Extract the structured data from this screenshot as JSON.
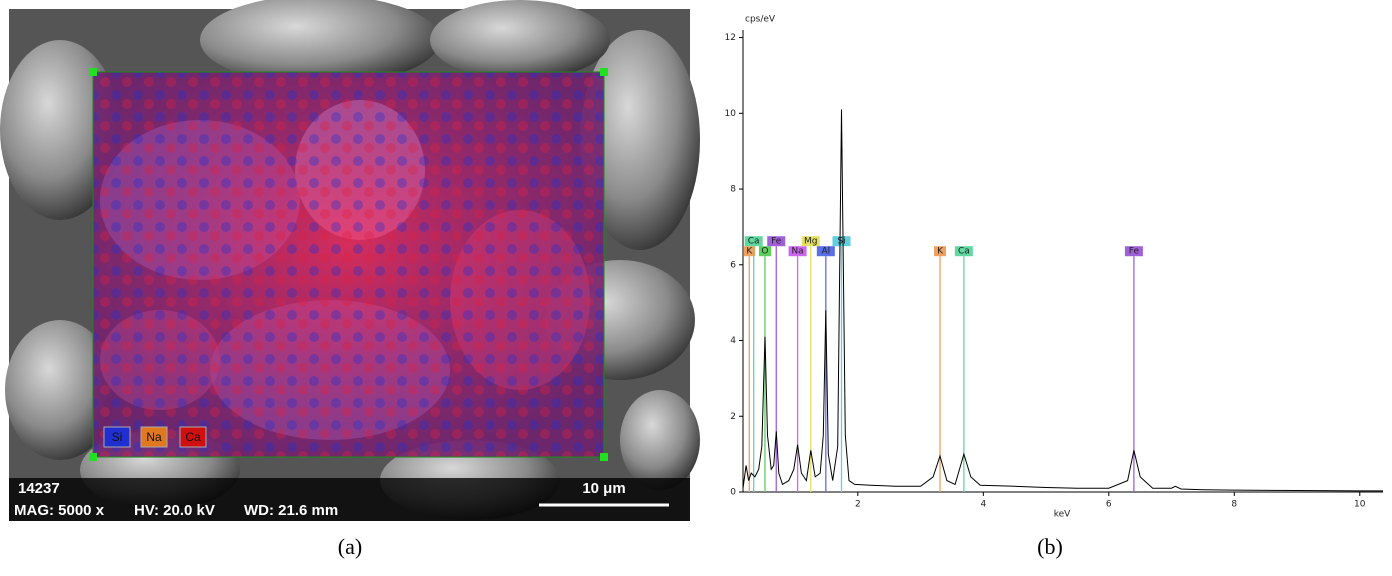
{
  "panel_a": {
    "scale_number": "14237",
    "magnification": "MAG: 5000 x",
    "voltage": "HV: 20.0 kV",
    "working_distance": "WD: 21.6 mm",
    "scale_bar": "10 μm",
    "map_legend": [
      "Si",
      "Na",
      "Ca"
    ],
    "caption": "(a)"
  },
  "panel_b_caption": "(b)",
  "chart_data": {
    "type": "line",
    "y_label": "cps/eV",
    "x_label": "keV",
    "x": [
      0.17,
      0.22,
      0.26,
      0.3,
      0.36,
      0.42,
      0.47,
      0.52,
      0.56,
      0.62,
      0.66,
      0.7,
      0.74,
      0.8,
      0.9,
      0.98,
      1.04,
      1.1,
      1.18,
      1.25,
      1.32,
      1.4,
      1.45,
      1.49,
      1.53,
      1.6,
      1.68,
      1.74,
      1.8,
      1.86,
      1.95,
      2.2,
      2.6,
      3.0,
      3.2,
      3.31,
      3.42,
      3.55,
      3.69,
      3.8,
      3.95,
      4.5,
      5.0,
      5.5,
      6.0,
      6.3,
      6.4,
      6.5,
      6.7,
      7.0,
      7.06,
      7.15,
      7.5,
      8.0,
      9.0,
      10.0,
      10.37
    ],
    "values": [
      0.1,
      0.7,
      0.3,
      0.5,
      0.4,
      0.6,
      1.2,
      4.1,
      1.5,
      0.6,
      0.7,
      1.6,
      0.5,
      0.2,
      0.3,
      0.6,
      1.25,
      0.5,
      0.3,
      1.1,
      0.4,
      0.5,
      1.5,
      4.8,
      1.0,
      0.3,
      1.2,
      10.1,
      1.5,
      0.3,
      0.2,
      0.18,
      0.15,
      0.15,
      0.4,
      0.95,
      0.3,
      0.2,
      1.0,
      0.4,
      0.18,
      0.15,
      0.12,
      0.1,
      0.1,
      0.3,
      1.1,
      0.4,
      0.1,
      0.1,
      0.15,
      0.08,
      0.06,
      0.05,
      0.04,
      0.03,
      0.03
    ],
    "color": "#000000",
    "xlim": [
      0.17,
      10.37
    ],
    "ylim": [
      0,
      12.2
    ],
    "xticks": [
      2,
      4,
      6,
      8,
      10
    ],
    "yticks": [
      0,
      2,
      4,
      6,
      8,
      10,
      12
    ],
    "markers": [
      {
        "label": "K",
        "x": 0.27,
        "color": "#f0a060"
      },
      {
        "label": "Ca",
        "x": 0.34,
        "color": "#60d8a0"
      },
      {
        "label": "O",
        "x": 0.52,
        "color": "#5cd05c"
      },
      {
        "label": "Fe",
        "x": 0.7,
        "color": "#a060d8"
      },
      {
        "label": "Na",
        "x": 1.04,
        "color": "#cc66ee"
      },
      {
        "label": "Mg",
        "x": 1.25,
        "color": "#e6e060"
      },
      {
        "label": "Al",
        "x": 1.49,
        "color": "#5a6ee8"
      },
      {
        "label": "Si",
        "x": 1.74,
        "color": "#60d0e0"
      },
      {
        "label": "K",
        "x": 3.31,
        "color": "#f0a060"
      },
      {
        "label": "Ca",
        "x": 3.69,
        "color": "#60d8a0"
      },
      {
        "label": "Fe",
        "x": 6.4,
        "color": "#a060d8"
      }
    ],
    "marker_height": 6.2
  }
}
